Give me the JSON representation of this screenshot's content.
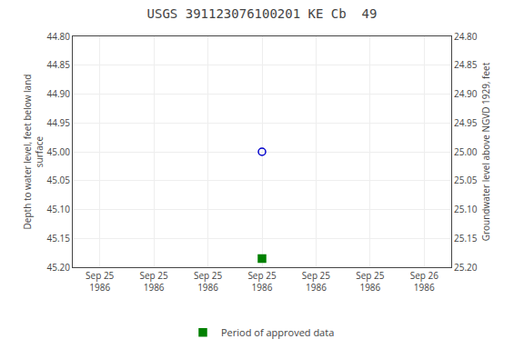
{
  "chart_data": {
    "type": "scatter",
    "title": "USGS 391123076100201 KE Cb  49",
    "y_label": "Depth to water level, feet below land\nsurface",
    "y2_label": "Groundwater level above NGVD 1929, feet",
    "categories": [
      "Sep 25\n1986",
      "Sep 25\n1986",
      "Sep 25\n1986",
      "Sep 25\n1986",
      "Sep 25\n1986",
      "Sep 25\n1986",
      "Sep 26\n1986"
    ],
    "series": [
      {
        "color": "#0000cc",
        "marker": "circle-open",
        "values": [
          null,
          null,
          null,
          45.0,
          null,
          null,
          null
        ]
      },
      {
        "name": "Period of approved data",
        "color": "#008000",
        "marker": "square",
        "values": [
          null,
          null,
          null,
          45.185,
          null,
          null,
          null
        ]
      }
    ],
    "ylim": [
      45.2,
      44.8
    ],
    "yticks": [
      {
        "value": 44.8,
        "label": "44.80"
      },
      {
        "value": 44.85,
        "label": "44.85"
      },
      {
        "value": 44.9,
        "label": "44.90"
      },
      {
        "value": 44.95,
        "label": "44.95"
      },
      {
        "value": 45.0,
        "label": "45.00"
      },
      {
        "value": 45.05,
        "label": "45.05"
      },
      {
        "value": 45.1,
        "label": "45.10"
      },
      {
        "value": 45.15,
        "label": "45.15"
      },
      {
        "value": 45.2,
        "label": "45.20"
      }
    ],
    "y2lim": [
      25.2,
      24.8
    ],
    "y2ticks": [
      {
        "value": 24.8,
        "label": "24.80"
      },
      {
        "value": 24.85,
        "label": "24.85"
      },
      {
        "value": 24.9,
        "label": "24.90"
      },
      {
        "value": 24.95,
        "label": "24.95"
      },
      {
        "value": 25.0,
        "label": "25.00"
      },
      {
        "value": 25.05,
        "label": "25.05"
      },
      {
        "value": 25.1,
        "label": "25.10"
      },
      {
        "value": 25.15,
        "label": "25.15"
      },
      {
        "value": 25.2,
        "label": "25.20"
      }
    ],
    "grid": true,
    "legend": "bottom"
  }
}
